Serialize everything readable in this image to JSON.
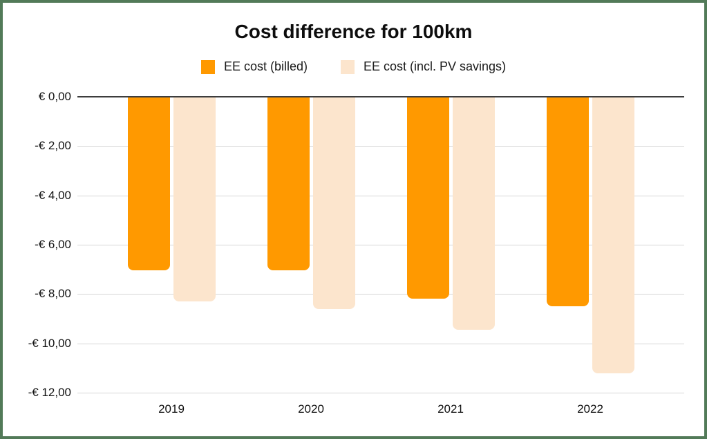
{
  "frame": {
    "border_color": "#527a58",
    "background_color": "#ffffff"
  },
  "chart_data": {
    "type": "bar",
    "title": "Cost difference for 100km",
    "categories": [
      "2019",
      "2020",
      "2021",
      "2022"
    ],
    "series": [
      {
        "name": "EE cost (billed)",
        "color": "#FF9900",
        "values": [
          -7.05,
          -7.05,
          -8.2,
          -8.5
        ]
      },
      {
        "name": "EE cost (incl. PV savings)",
        "color": "#FCE5CD",
        "values": [
          -8.3,
          -8.6,
          -9.45,
          -11.2
        ]
      }
    ],
    "y_axis": {
      "tick_values": [
        0,
        -2,
        -4,
        -6,
        -8,
        -10,
        -12
      ],
      "tick_labels": [
        "€ 0,00",
        "-€ 2,00",
        "-€ 4,00",
        "-€ 6,00",
        "-€ 8,00",
        "-€ 10,00",
        "-€ 12,00"
      ],
      "range": [
        -12,
        0
      ]
    },
    "xlabel": "",
    "ylabel": "",
    "legend_position": "top",
    "grid": "horizontal",
    "zero_line_color": "#3d3d3d",
    "gridline_color": "#d6d6d6"
  }
}
